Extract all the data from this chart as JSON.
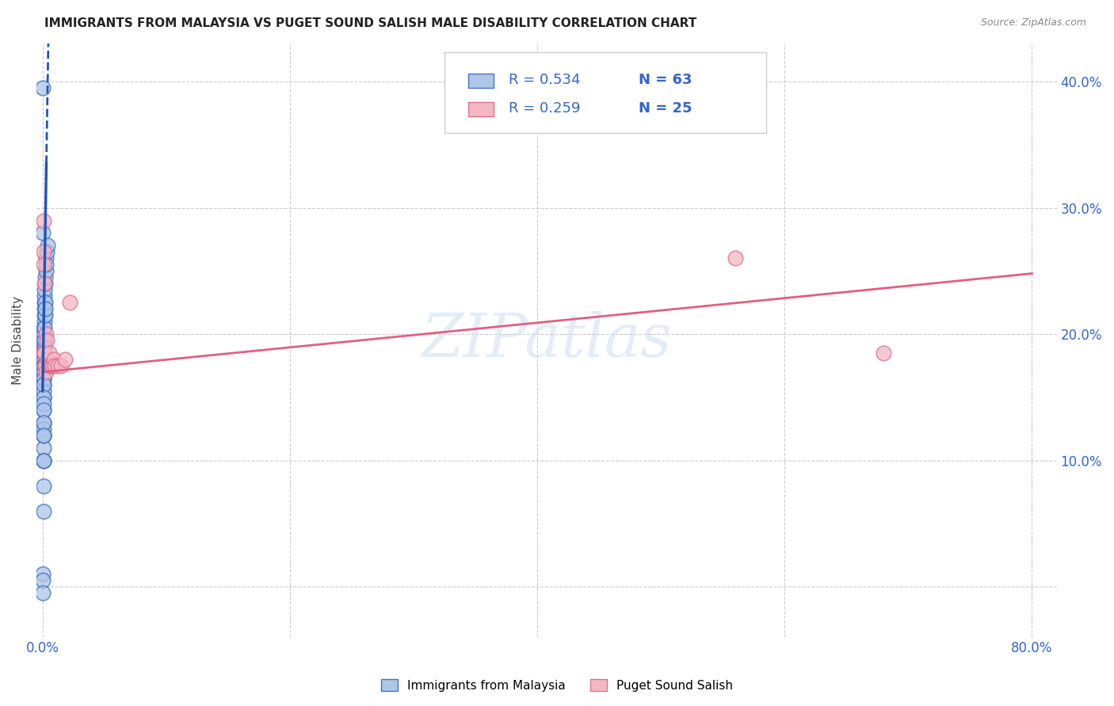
{
  "title": "IMMIGRANTS FROM MALAYSIA VS PUGET SOUND SALISH MALE DISABILITY CORRELATION CHART",
  "source": "Source: ZipAtlas.com",
  "ylabel": "Male Disability",
  "xlim_min": -0.005,
  "xlim_max": 0.82,
  "ylim_min": -0.04,
  "ylim_max": 0.43,
  "legend_r1": "R = 0.534",
  "legend_n1": "N = 63",
  "legend_r2": "R = 0.259",
  "legend_n2": "N = 25",
  "blue_face_color": "#aec6e8",
  "blue_edge_color": "#4472c4",
  "pink_face_color": "#f4b8c4",
  "pink_edge_color": "#e07090",
  "blue_trend_color": "#2255bb",
  "pink_trend_color": "#e06080",
  "watermark": "ZIPatlas",
  "blue_scatter_x": [
    0.0003,
    0.0003,
    0.0004,
    0.0004,
    0.0004,
    0.0005,
    0.0005,
    0.0005,
    0.0005,
    0.0006,
    0.0006,
    0.0006,
    0.0006,
    0.0007,
    0.0007,
    0.0007,
    0.0007,
    0.0007,
    0.0008,
    0.0008,
    0.0008,
    0.0008,
    0.0008,
    0.0009,
    0.0009,
    0.0009,
    0.0009,
    0.001,
    0.001,
    0.001,
    0.001,
    0.001,
    0.001,
    0.001,
    0.001,
    0.001,
    0.001,
    0.001,
    0.001,
    0.001,
    0.001,
    0.001,
    0.0011,
    0.0011,
    0.0012,
    0.0012,
    0.0013,
    0.0013,
    0.0014,
    0.0015,
    0.0015,
    0.0016,
    0.0017,
    0.0018,
    0.0019,
    0.002,
    0.0021,
    0.0023,
    0.0025,
    0.0028,
    0.003,
    0.0035,
    0.004
  ],
  "blue_scatter_y": [
    0.395,
    0.01,
    0.28,
    0.005,
    -0.005,
    0.13,
    0.12,
    0.08,
    0.06,
    0.15,
    0.14,
    0.11,
    0.1,
    0.175,
    0.17,
    0.165,
    0.16,
    0.125,
    0.185,
    0.18,
    0.175,
    0.155,
    0.12,
    0.175,
    0.17,
    0.165,
    0.1,
    0.2,
    0.195,
    0.19,
    0.185,
    0.18,
    0.175,
    0.17,
    0.165,
    0.16,
    0.15,
    0.145,
    0.14,
    0.13,
    0.12,
    0.1,
    0.205,
    0.185,
    0.21,
    0.19,
    0.215,
    0.195,
    0.22,
    0.225,
    0.205,
    0.23,
    0.235,
    0.215,
    0.225,
    0.24,
    0.22,
    0.245,
    0.25,
    0.26,
    0.255,
    0.265,
    0.27
  ],
  "pink_scatter_x": [
    0.0005,
    0.0007,
    0.0009,
    0.001,
    0.0012,
    0.0014,
    0.0016,
    0.0018,
    0.002,
    0.0025,
    0.003,
    0.0035,
    0.004,
    0.005,
    0.006,
    0.007,
    0.008,
    0.009,
    0.01,
    0.012,
    0.015,
    0.018,
    0.022,
    0.56,
    0.68
  ],
  "pink_scatter_y": [
    0.29,
    0.265,
    0.255,
    0.185,
    0.24,
    0.185,
    0.185,
    0.175,
    0.175,
    0.17,
    0.2,
    0.195,
    0.18,
    0.185,
    0.175,
    0.175,
    0.175,
    0.18,
    0.175,
    0.175,
    0.175,
    0.18,
    0.225,
    0.26,
    0.185
  ],
  "blue_trend_x0": 0.0,
  "blue_trend_y0": 0.155,
  "blue_trend_x1": 0.004,
  "blue_trend_y1": 0.395,
  "pink_trend_x0": 0.0,
  "pink_trend_y0": 0.17,
  "pink_trend_x1": 0.8,
  "pink_trend_y1": 0.248
}
